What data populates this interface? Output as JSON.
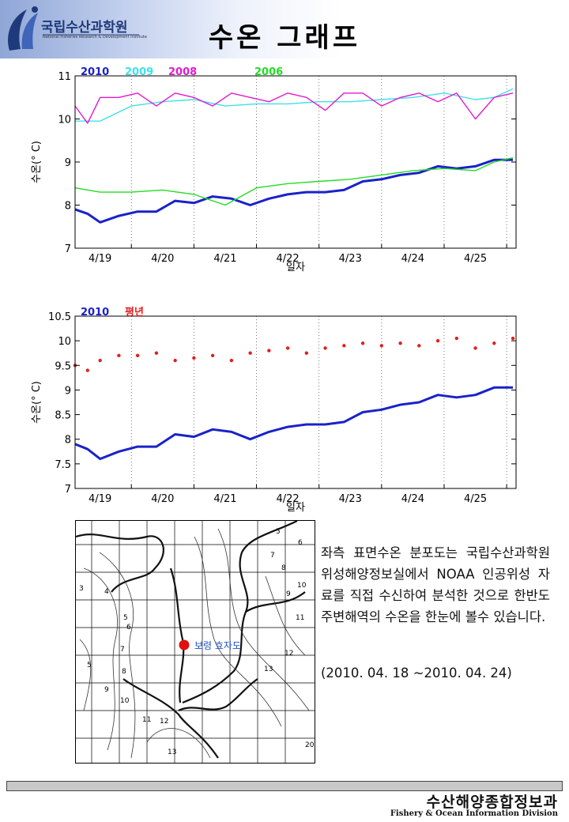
{
  "header": {
    "logo_name": "국립수산과학원",
    "logo_sub": "National Fisheries Research & Development Institute",
    "title": "수온 그래프"
  },
  "chart_data": [
    {
      "type": "line",
      "ylabel": "수온(° C)",
      "xlabel": "일자",
      "x_ticks": [
        "4/19",
        "4/20",
        "4/21",
        "4/22",
        "4/23",
        "4/24",
        "4/25"
      ],
      "x_range_days": [
        18.6,
        25.65
      ],
      "ylim": [
        7,
        11
      ],
      "y_ticks": [
        7,
        8,
        9,
        10,
        11
      ],
      "grid": "vertical dotted day separators",
      "legend_position": "top-left",
      "series": [
        {
          "name": "2010",
          "color": "#1a22c8",
          "x": [
            18.6,
            18.8,
            19.0,
            19.3,
            19.6,
            19.9,
            20.2,
            20.5,
            20.8,
            21.1,
            21.4,
            21.7,
            22.0,
            22.3,
            22.6,
            22.9,
            23.2,
            23.5,
            23.8,
            24.1,
            24.4,
            24.7,
            25.0,
            25.3,
            25.6
          ],
          "values": [
            7.9,
            7.8,
            7.6,
            7.75,
            7.85,
            7.85,
            8.1,
            8.05,
            8.2,
            8.15,
            8.0,
            8.15,
            8.25,
            8.3,
            8.3,
            8.35,
            8.55,
            8.6,
            8.7,
            8.75,
            8.9,
            8.85,
            8.9,
            9.05,
            9.05
          ]
        },
        {
          "name": "2009",
          "color": "#3fe0e8",
          "x": [
            18.6,
            19.0,
            19.5,
            20.0,
            20.5,
            21.0,
            21.5,
            22.0,
            22.5,
            23.0,
            23.5,
            24.0,
            24.5,
            25.0,
            25.3,
            25.6
          ],
          "values": [
            9.95,
            9.95,
            10.3,
            10.4,
            10.45,
            10.3,
            10.35,
            10.35,
            10.4,
            10.4,
            10.45,
            10.5,
            10.6,
            10.45,
            10.5,
            10.7
          ]
        },
        {
          "name": "2008",
          "color": "#e21ad0",
          "x": [
            18.6,
            18.8,
            19.0,
            19.3,
            19.6,
            19.9,
            20.2,
            20.5,
            20.8,
            21.1,
            21.4,
            21.7,
            22.0,
            22.3,
            22.6,
            22.9,
            23.2,
            23.5,
            23.8,
            24.1,
            24.4,
            24.7,
            25.0,
            25.3,
            25.6
          ],
          "values": [
            10.3,
            9.9,
            10.5,
            10.5,
            10.6,
            10.3,
            10.6,
            10.5,
            10.3,
            10.6,
            10.5,
            10.4,
            10.6,
            10.5,
            10.2,
            10.6,
            10.6,
            10.3,
            10.5,
            10.6,
            10.4,
            10.6,
            10.0,
            10.5,
            10.6
          ]
        },
        {
          "name": "2006",
          "color": "#22dd22",
          "x": [
            18.6,
            19.0,
            19.5,
            20.0,
            20.5,
            21.0,
            21.5,
            22.0,
            22.5,
            23.0,
            23.5,
            24.0,
            24.5,
            25.0,
            25.3,
            25.6
          ],
          "values": [
            8.4,
            8.3,
            8.3,
            8.35,
            8.25,
            8.0,
            8.4,
            8.5,
            8.55,
            8.6,
            8.7,
            8.8,
            8.85,
            8.8,
            9.0,
            9.1
          ]
        }
      ]
    },
    {
      "type": "line",
      "ylabel": "수온(° C)",
      "xlabel": "일자",
      "x_ticks": [
        "4/19",
        "4/20",
        "4/21",
        "4/22",
        "4/23",
        "4/24",
        "4/25"
      ],
      "x_range_days": [
        18.6,
        25.65
      ],
      "ylim": [
        7,
        10.5
      ],
      "y_ticks": [
        7,
        7.5,
        8,
        8.5,
        9,
        9.5,
        10,
        10.5
      ],
      "grid": "vertical dotted day separators",
      "legend_position": "top-left",
      "series": [
        {
          "name": "2010",
          "color": "#1a22c8",
          "style": "line",
          "x": [
            18.6,
            18.8,
            19.0,
            19.3,
            19.6,
            19.9,
            20.2,
            20.5,
            20.8,
            21.1,
            21.4,
            21.7,
            22.0,
            22.3,
            22.6,
            22.9,
            23.2,
            23.5,
            23.8,
            24.1,
            24.4,
            24.7,
            25.0,
            25.3,
            25.6
          ],
          "values": [
            7.9,
            7.8,
            7.6,
            7.75,
            7.85,
            7.85,
            8.1,
            8.05,
            8.2,
            8.15,
            8.0,
            8.15,
            8.25,
            8.3,
            8.3,
            8.35,
            8.55,
            8.6,
            8.7,
            8.75,
            8.9,
            8.85,
            8.9,
            9.05,
            9.05
          ]
        },
        {
          "name": "평년",
          "color": "#e02020",
          "style": "dots",
          "x": [
            18.6,
            18.8,
            19.0,
            19.3,
            19.6,
            19.9,
            20.2,
            20.5,
            20.8,
            21.1,
            21.4,
            21.7,
            22.0,
            22.3,
            22.6,
            22.9,
            23.2,
            23.5,
            23.8,
            24.1,
            24.4,
            24.7,
            25.0,
            25.3,
            25.6
          ],
          "values": [
            9.5,
            9.4,
            9.6,
            9.7,
            9.7,
            9.75,
            9.6,
            9.65,
            9.7,
            9.6,
            9.75,
            9.8,
            9.85,
            9.75,
            9.85,
            9.9,
            9.95,
            9.9,
            9.95,
            9.9,
            10.0,
            10.05,
            9.85,
            9.95,
            10.05
          ]
        }
      ]
    }
  ],
  "map": {
    "location_label": "보령 효자도",
    "marker_color": "#e01010",
    "contour_labels": [
      "3",
      "4",
      "5",
      "6",
      "7",
      "8",
      "9",
      "10",
      "11",
      "12",
      "13",
      "5",
      "6",
      "7",
      "8",
      "9",
      "10",
      "11",
      "12",
      "13",
      "20"
    ]
  },
  "caption": {
    "text": "좌측 표면수온 분포도는 국립수산과학원 위성해양정보실에서 NOAA 인공위성 자료를 직접 수신하여 분석한 것으로 한반도 주변해역의 수온을 한눈에 볼수 있습니다.",
    "date_range": "(2010. 04. 18 ~2010. 04. 24)"
  },
  "footer": {
    "org_name": "수산해양종합정보과",
    "org_name_en": "Fishery & Ocean Information Division"
  }
}
